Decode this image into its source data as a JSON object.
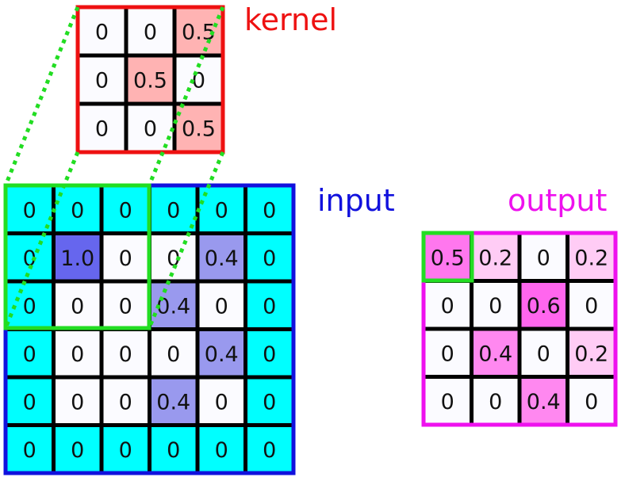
{
  "labels": {
    "kernel": "kernel",
    "input": "input",
    "output": "output"
  },
  "colors": {
    "kernel_border": "#ee1111",
    "input_border": "#1111dd",
    "output_border": "#ee11ee",
    "window": "#22dd22",
    "input_pad": "#00ffff",
    "empty_cell": "#fbfbff"
  },
  "kernel": {
    "values": [
      [
        "0",
        "0",
        "0.5"
      ],
      [
        "0",
        "0.5",
        "0"
      ],
      [
        "0",
        "0",
        "0.5"
      ]
    ],
    "fills": [
      [
        "#fbfbff",
        "#fbfbff",
        "#ffb3b3"
      ],
      [
        "#fbfbff",
        "#ffb3b3",
        "#fbfbff"
      ],
      [
        "#fbfbff",
        "#fbfbff",
        "#ffb3b3"
      ]
    ]
  },
  "input": {
    "values": [
      [
        "0",
        "0",
        "0",
        "0",
        "0",
        "0"
      ],
      [
        "0",
        "1.0",
        "0",
        "0",
        "0.4",
        "0"
      ],
      [
        "0",
        "0",
        "0",
        "0.4",
        "0",
        "0"
      ],
      [
        "0",
        "0",
        "0",
        "0",
        "0.4",
        "0"
      ],
      [
        "0",
        "0",
        "0",
        "0.4",
        "0",
        "0"
      ],
      [
        "0",
        "0",
        "0",
        "0",
        "0",
        "0"
      ]
    ],
    "fills": [
      [
        "#00ffff",
        "#00ffff",
        "#00ffff",
        "#00ffff",
        "#00ffff",
        "#00ffff"
      ],
      [
        "#00ffff",
        "#6666ee",
        "#fbfbff",
        "#fbfbff",
        "#9999ee",
        "#00ffff"
      ],
      [
        "#00ffff",
        "#fbfbff",
        "#fbfbff",
        "#9999ee",
        "#fbfbff",
        "#00ffff"
      ],
      [
        "#00ffff",
        "#fbfbff",
        "#fbfbff",
        "#fbfbff",
        "#9999ee",
        "#00ffff"
      ],
      [
        "#00ffff",
        "#fbfbff",
        "#fbfbff",
        "#9999ee",
        "#fbfbff",
        "#00ffff"
      ],
      [
        "#00ffff",
        "#00ffff",
        "#00ffff",
        "#00ffff",
        "#00ffff",
        "#00ffff"
      ]
    ]
  },
  "output": {
    "values": [
      [
        "0.5",
        "0.2",
        "0",
        "0.2"
      ],
      [
        "0",
        "0",
        "0.6",
        "0"
      ],
      [
        "0",
        "0.4",
        "0",
        "0.2"
      ],
      [
        "0",
        "0",
        "0.4",
        "0"
      ]
    ],
    "fills": [
      [
        "#ff77ee",
        "#ffccf5",
        "#fbfbff",
        "#ffccf5"
      ],
      [
        "#fbfbff",
        "#fbfbff",
        "#ff66ee",
        "#fbfbff"
      ],
      [
        "#fbfbff",
        "#ff88f0",
        "#fbfbff",
        "#ffccf5"
      ],
      [
        "#fbfbff",
        "#fbfbff",
        "#ff88f0",
        "#fbfbff"
      ]
    ]
  }
}
